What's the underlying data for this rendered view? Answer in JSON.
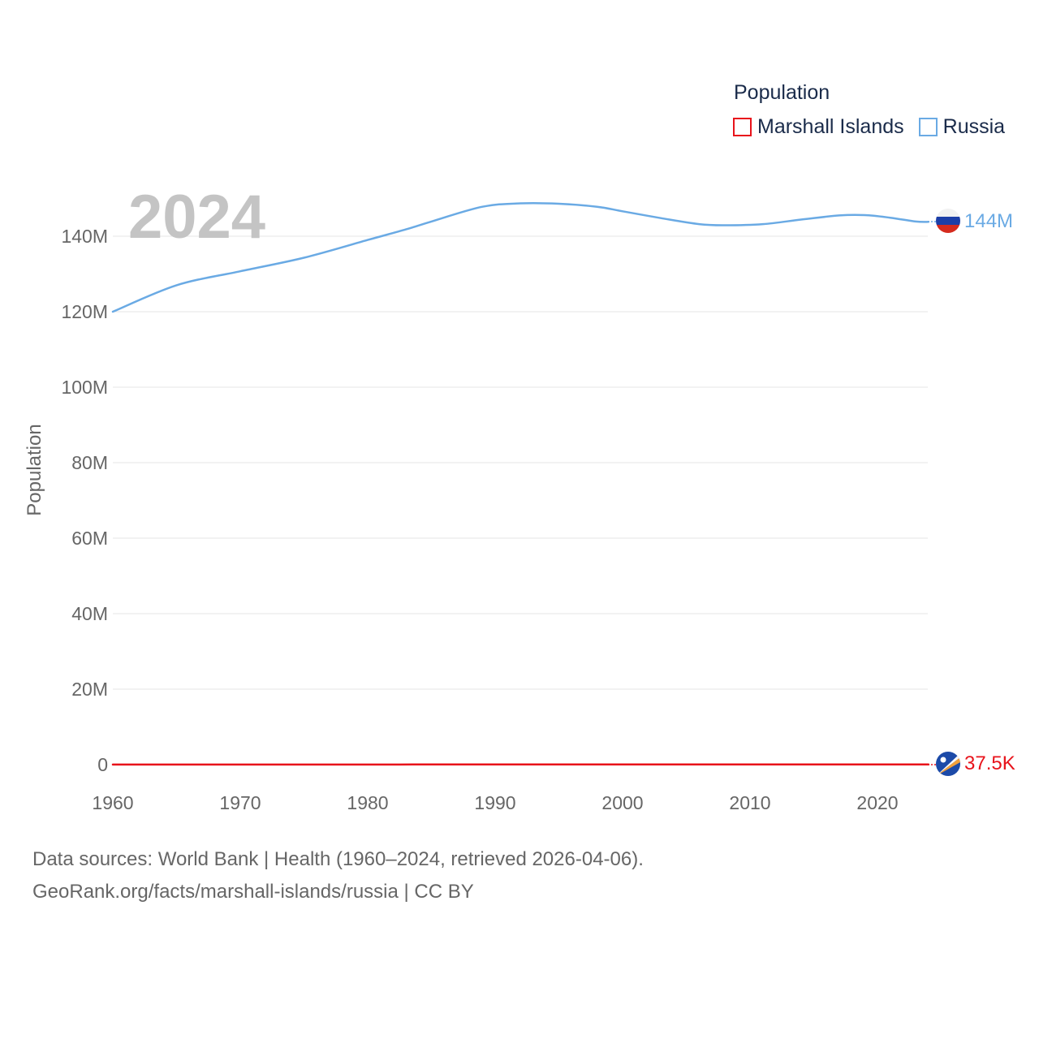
{
  "year_label": "2024",
  "legend": {
    "title": "Population",
    "items": [
      {
        "name": "Marshall Islands",
        "color": "#e8131b"
      },
      {
        "name": "Russia",
        "color": "#6aaae4"
      }
    ]
  },
  "end_labels": {
    "russia": "144M",
    "marshall_islands": "37.5K"
  },
  "source": {
    "line1": "Data sources: World Bank | Health (1960–2024, retrieved 2026-04-06).",
    "line2": "GeoRank.org/facts/marshall-islands/russia | CC BY"
  },
  "chart_data": {
    "type": "line",
    "title": "Population",
    "xlabel": "",
    "ylabel": "Population",
    "xlim": [
      1960,
      2024
    ],
    "ylim": [
      0,
      150000000
    ],
    "x_ticks": [
      1960,
      1970,
      1980,
      1990,
      2000,
      2010,
      2020
    ],
    "y_ticks": [
      {
        "value": 0,
        "label": "0"
      },
      {
        "value": 20000000,
        "label": "20M"
      },
      {
        "value": 40000000,
        "label": "40M"
      },
      {
        "value": 60000000,
        "label": "60M"
      },
      {
        "value": 80000000,
        "label": "80M"
      },
      {
        "value": 100000000,
        "label": "100M"
      },
      {
        "value": 120000000,
        "label": "120M"
      },
      {
        "value": 140000000,
        "label": "140M"
      }
    ],
    "grid": true,
    "legend_position": "top-right",
    "series": [
      {
        "name": "Russia",
        "color": "#6aaae4",
        "x": [
          1960,
          1965,
          1970,
          1975,
          1980,
          1983,
          1985,
          1989,
          1992,
          1995,
          1998,
          2000,
          2003,
          2006,
          2008,
          2011,
          2014,
          2017,
          2019,
          2021,
          2023,
          2024
        ],
        "values": [
          120000000,
          127000000,
          130700000,
          134300000,
          139000000,
          141800000,
          143900000,
          147800000,
          148700000,
          148600000,
          147800000,
          146600000,
          144800000,
          143200000,
          142900000,
          143200000,
          144400000,
          145500000,
          145600000,
          144900000,
          143900000,
          143800000
        ]
      },
      {
        "name": "Marshall Islands",
        "color": "#e8131b",
        "x": [
          1960,
          1965,
          1970,
          1975,
          1980,
          1985,
          1990,
          1995,
          2000,
          2005,
          2010,
          2015,
          2020,
          2024
        ],
        "values": [
          14900,
          17900,
          21800,
          26300,
          31800,
          39000,
          47300,
          51000,
          54200,
          54500,
          53400,
          48000,
          42200,
          37500
        ]
      }
    ]
  }
}
